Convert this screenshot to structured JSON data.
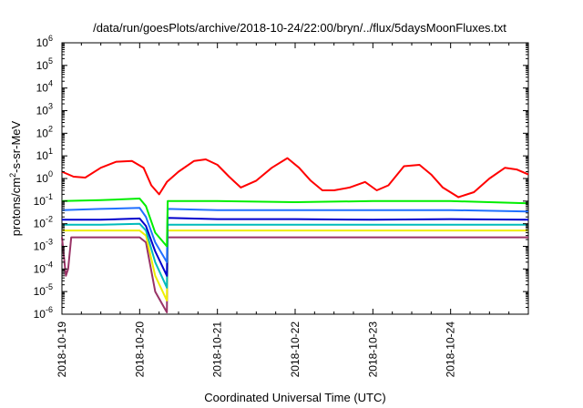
{
  "chart_data": {
    "type": "line",
    "title": "/data/run/goesPlots/archive/2018-10-24/22:00/bryn/../flux/5daysMoonFluxes.txt",
    "xlabel": "Coordinated Universal Time (UTC)",
    "ylabel_base": "protons/cm",
    "ylabel_sup": "2",
    "ylabel_rest": "-s-sr-MeV",
    "y_scale": "log",
    "ylim": [
      1e-06,
      1000000.0
    ],
    "y_ticks": [
      {
        "base": "10",
        "exp": "-6"
      },
      {
        "base": "10",
        "exp": "-5"
      },
      {
        "base": "10",
        "exp": "-4"
      },
      {
        "base": "10",
        "exp": "-3"
      },
      {
        "base": "10",
        "exp": "-2"
      },
      {
        "base": "10",
        "exp": "-1"
      },
      {
        "base": "10",
        "exp": "0"
      },
      {
        "base": "10",
        "exp": "1"
      },
      {
        "base": "10",
        "exp": "2"
      },
      {
        "base": "10",
        "exp": "3"
      },
      {
        "base": "10",
        "exp": "4"
      },
      {
        "base": "10",
        "exp": "5"
      },
      {
        "base": "10",
        "exp": "6"
      }
    ],
    "x_ticks": [
      "2018-10-19",
      "2018-10-20",
      "2018-10-21",
      "2018-10-22",
      "2018-10-23",
      "2018-10-24"
    ],
    "xlim_days": [
      0,
      6
    ],
    "grid": false,
    "legend": "none",
    "series": [
      {
        "color": "#ff0000",
        "x": [
          0,
          0.15,
          0.3,
          0.5,
          0.7,
          0.9,
          1.05,
          1.15,
          1.25,
          1.35,
          1.5,
          1.7,
          1.85,
          2.0,
          2.15,
          2.3,
          2.5,
          2.7,
          2.9,
          3.05,
          3.2,
          3.35,
          3.5,
          3.7,
          3.9,
          4.05,
          4.2,
          4.4,
          4.6,
          4.75,
          4.9,
          5.1,
          5.3,
          5.5,
          5.7,
          5.85,
          6.0
        ],
        "y": [
          2,
          1.2,
          1.1,
          3,
          5.5,
          6,
          3,
          0.5,
          0.2,
          0.7,
          2,
          6,
          7,
          4,
          1.2,
          0.4,
          0.8,
          3,
          8,
          3,
          0.8,
          0.3,
          0.3,
          0.4,
          0.7,
          0.3,
          0.5,
          3.5,
          4,
          1.5,
          0.4,
          0.15,
          0.25,
          1,
          3,
          2.5,
          1.5
        ]
      },
      {
        "color": "#00ee00",
        "x": [
          0,
          0.5,
          1.0,
          1.08,
          1.2,
          1.35,
          1.36,
          2.0,
          3.0,
          4.0,
          5.0,
          6.0
        ],
        "y": [
          0.1,
          0.11,
          0.13,
          0.06,
          0.004,
          0.001,
          0.1,
          0.1,
          0.09,
          0.1,
          0.1,
          0.08
        ]
      },
      {
        "color": "#1f6fff",
        "x": [
          0,
          0.5,
          1.0,
          1.08,
          1.2,
          1.35,
          1.36,
          2.0,
          3.0,
          4.0,
          5.0,
          6.0
        ],
        "y": [
          0.04,
          0.045,
          0.05,
          0.02,
          0.0015,
          0.0002,
          0.045,
          0.04,
          0.04,
          0.04,
          0.04,
          0.035
        ]
      },
      {
        "color": "#0000cc",
        "x": [
          0,
          0.5,
          1.0,
          1.08,
          1.2,
          1.35,
          1.36,
          2.0,
          3.0,
          4.0,
          5.0,
          6.0
        ],
        "y": [
          0.015,
          0.015,
          0.017,
          0.008,
          0.0006,
          5e-05,
          0.018,
          0.016,
          0.016,
          0.015,
          0.016,
          0.015
        ]
      },
      {
        "color": "#00bbbb",
        "x": [
          0,
          0.5,
          1.0,
          1.08,
          1.2,
          1.35,
          1.36,
          2.0,
          3.0,
          4.0,
          5.0,
          6.0
        ],
        "y": [
          0.009,
          0.009,
          0.01,
          0.005,
          0.0002,
          1.5e-05,
          0.009,
          0.009,
          0.009,
          0.009,
          0.009,
          0.009
        ]
      },
      {
        "color": "#eeee00",
        "x": [
          0,
          0.5,
          1.0,
          1.08,
          1.2,
          1.35,
          1.36,
          2.0,
          3.0,
          4.0,
          5.0,
          6.0
        ],
        "y": [
          0.005,
          0.005,
          0.005,
          0.003,
          5e-05,
          4e-06,
          0.005,
          0.005,
          0.005,
          0.005,
          0.005,
          0.005
        ]
      },
      {
        "color": "#993366",
        "x": [
          0,
          0.05,
          0.08,
          0.12,
          0.5,
          1.0,
          1.08,
          1.2,
          1.35,
          1.36,
          2.0,
          3.0,
          4.0,
          5.0,
          6.0
        ],
        "y": [
          0.0025,
          5e-05,
          0.0001,
          0.0025,
          0.0025,
          0.0025,
          0.0015,
          1e-05,
          1.2e-06,
          0.0025,
          0.0025,
          0.0025,
          0.0025,
          0.0025,
          0.0025
        ]
      }
    ]
  }
}
